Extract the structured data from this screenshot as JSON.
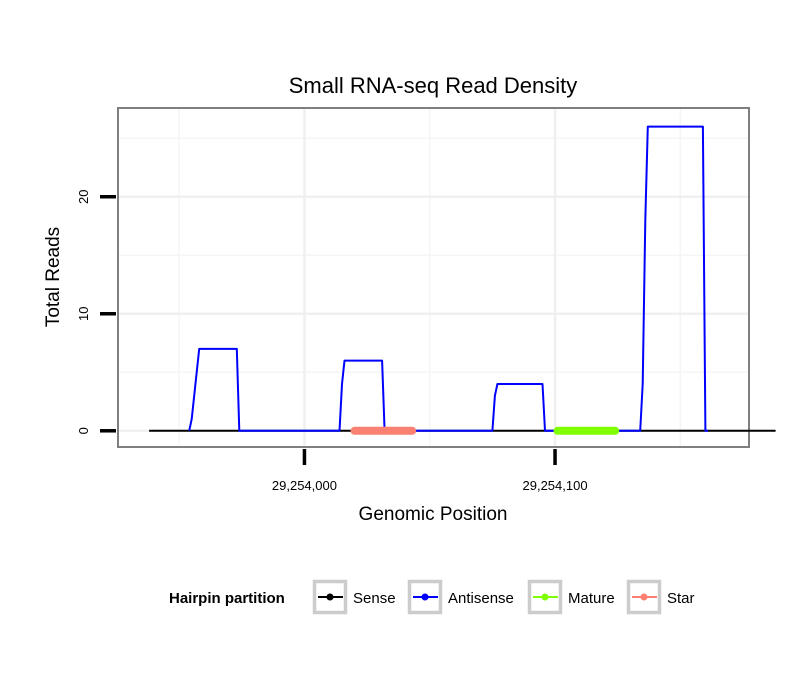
{
  "chart_data": {
    "type": "line",
    "title": "Small RNA-seq Read Density",
    "xlabel": "Genomic Position",
    "ylabel": "Total Reads",
    "xlim": [
      29253926,
      29254177
    ],
    "ylim": [
      -1.3,
      27.5
    ],
    "x_ticks": [
      29254000,
      29254100
    ],
    "x_tick_labels": [
      "29,254,000",
      "29,254,100"
    ],
    "y_ticks": [
      0,
      10,
      20
    ],
    "y_tick_labels": [
      "0",
      "10",
      "20"
    ],
    "grid": true,
    "legend_position": "bottom",
    "legend_title": "Hairpin partition",
    "legend": [
      {
        "name": "Sense",
        "color": "#000000"
      },
      {
        "name": "Antisense",
        "color": "#0000ff"
      },
      {
        "name": "Mature",
        "color": "#7fff00"
      },
      {
        "name": "Star",
        "color": "#fa8072"
      }
    ],
    "series": [
      {
        "name": "Sense",
        "color": "#000000",
        "x": [
          29253938,
          29254188
        ],
        "y": [
          0,
          0
        ]
      },
      {
        "name": "Antisense",
        "color": "#0000ff",
        "x": [
          29253954,
          29253955,
          29253958,
          29253973,
          29253974,
          29253976,
          29254014,
          29254015,
          29254016,
          29254031,
          29254032,
          29254033,
          29254075,
          29254076,
          29254077,
          29254095,
          29254096,
          29254097,
          29254134,
          29254135,
          29254136,
          29254137,
          29254159,
          29254160,
          29254161
        ],
        "y": [
          0,
          1,
          7,
          7,
          0,
          0,
          0,
          4,
          6,
          6,
          0,
          0,
          0,
          3,
          4,
          4,
          0,
          0,
          0,
          4,
          18,
          26,
          26,
          0,
          0
        ]
      }
    ],
    "segments": [
      {
        "name": "Star",
        "color": "#fa8072",
        "x_start": 29254020,
        "x_end": 29254043,
        "y": 0
      },
      {
        "name": "Mature",
        "color": "#7fff00",
        "x_start": 29254101,
        "x_end": 29254124,
        "y": 0
      }
    ]
  }
}
